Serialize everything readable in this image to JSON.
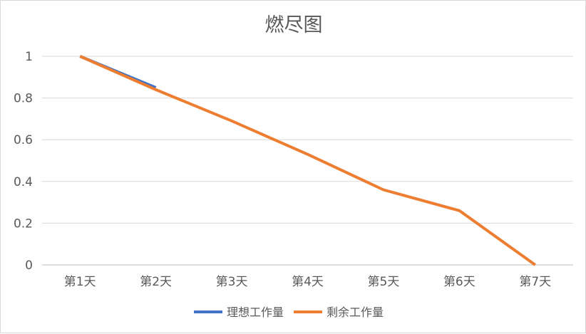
{
  "chart_data": {
    "type": "line",
    "title": "燃尽图",
    "xlabel": "",
    "ylabel": "",
    "categories": [
      "第1天",
      "第2天",
      "第3天",
      "第4天",
      "第5天",
      "第6天",
      "第7天"
    ],
    "ylim": [
      0,
      1
    ],
    "yticks": [
      "0",
      "0.2",
      "0.4",
      "0.6",
      "0.8",
      "1"
    ],
    "grid": true,
    "legend_position": "bottom",
    "series": [
      {
        "name": "理想工作量",
        "color": "#4472C4",
        "values": [
          1,
          0.85,
          null,
          null,
          null,
          null,
          null
        ]
      },
      {
        "name": "剩余工作量",
        "color": "#ED7D31",
        "values": [
          1,
          0.84,
          0.69,
          0.53,
          0.36,
          0.26,
          0
        ]
      }
    ]
  }
}
